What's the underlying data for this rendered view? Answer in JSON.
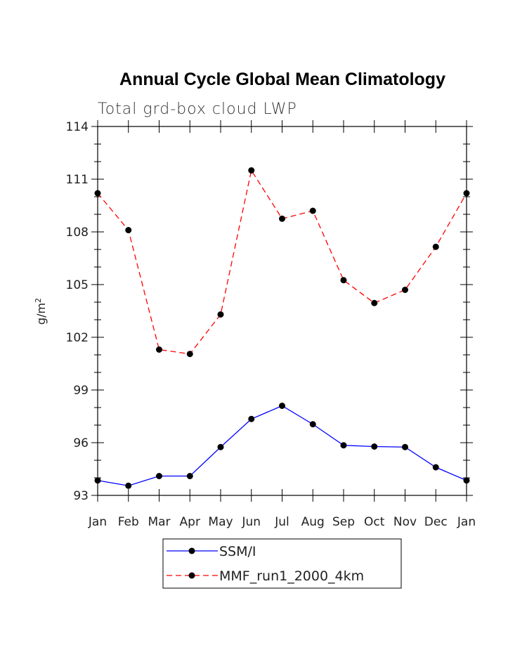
{
  "chart_data": {
    "type": "line",
    "title": "Annual Cycle Global Mean Climatology",
    "subtitle": "Total grd-box cloud LWP",
    "xlabel": "",
    "ylabel": "g/m",
    "ylabel_superscript": "2",
    "categories": [
      "Jan",
      "Feb",
      "Mar",
      "Apr",
      "May",
      "Jun",
      "Jul",
      "Aug",
      "Sep",
      "Oct",
      "Nov",
      "Dec",
      "Jan"
    ],
    "ylim": [
      93,
      114
    ],
    "yticks": [
      "93",
      "96",
      "99",
      "102",
      "105",
      "108",
      "111",
      "114"
    ],
    "grid": false,
    "legend_position": "bottom",
    "series": [
      {
        "name": "SSM/I",
        "color": "#0000ff",
        "dash": "solid",
        "values": [
          93.85,
          93.55,
          94.1,
          94.1,
          95.75,
          97.35,
          98.1,
          97.05,
          95.85,
          95.78,
          95.75,
          94.6,
          93.85
        ]
      },
      {
        "name": "MMF_run1_2000_4km",
        "color": "#ff0000",
        "dash": "dashed",
        "values": [
          110.2,
          108.1,
          101.3,
          101.05,
          103.3,
          111.5,
          108.75,
          109.2,
          105.25,
          103.95,
          104.7,
          107.15,
          110.2
        ]
      }
    ]
  }
}
